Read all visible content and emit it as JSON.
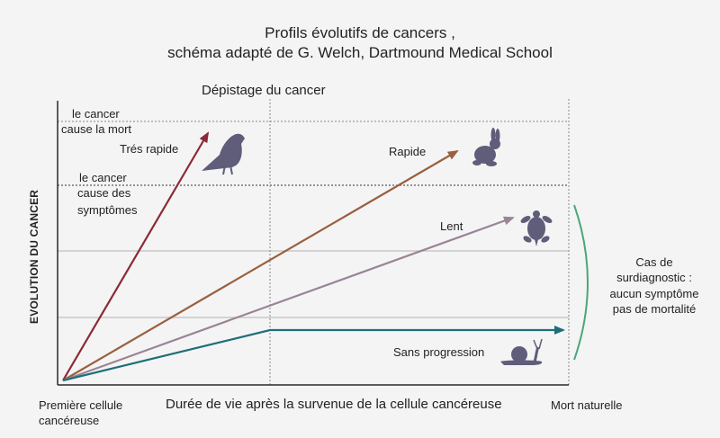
{
  "title_line1": "Profils évolutifs de cancers ,",
  "title_line2": "schéma adapté de G. Welch, Dartmound Medical School",
  "screening_label": "Dépistage du cancer",
  "y_axis_label": "EVOLUTION DU CANCER",
  "x_axis_label": "Durée de vie après la survenue de la cellule cancéreuse",
  "x_start_line1": "Première cellule",
  "x_start_line2": "cancéreuse",
  "x_end_label": "Mort naturelle",
  "threshold_death_line1": "le cancer",
  "threshold_death_line2": "cause la mort",
  "threshold_symptoms_line1": "le cancer",
  "threshold_symptoms_line2": "cause des",
  "threshold_symptoms_line3": "symptômes",
  "overdiagnosis_line1": "Cas de",
  "overdiagnosis_line2": "surdiagnostic :",
  "overdiagnosis_line3": "aucun symptôme",
  "overdiagnosis_line4": "pas de mortalité",
  "profiles": [
    {
      "label": "Trés rapide",
      "color": "#8b2a37",
      "icon": "crow-icon"
    },
    {
      "label": "Rapide",
      "color": "#9a6040",
      "icon": "rabbit-icon"
    },
    {
      "label": "Lent",
      "color": "#9a8496",
      "icon": "turtle-icon"
    },
    {
      "label": "Sans progression",
      "color": "#1e6e78",
      "icon": "snail-icon"
    }
  ],
  "colors": {
    "icon": "#5f5d7a",
    "bracket": "#4aa777",
    "grid": "#c8c8c8",
    "axis": "#2a2a2a"
  }
}
